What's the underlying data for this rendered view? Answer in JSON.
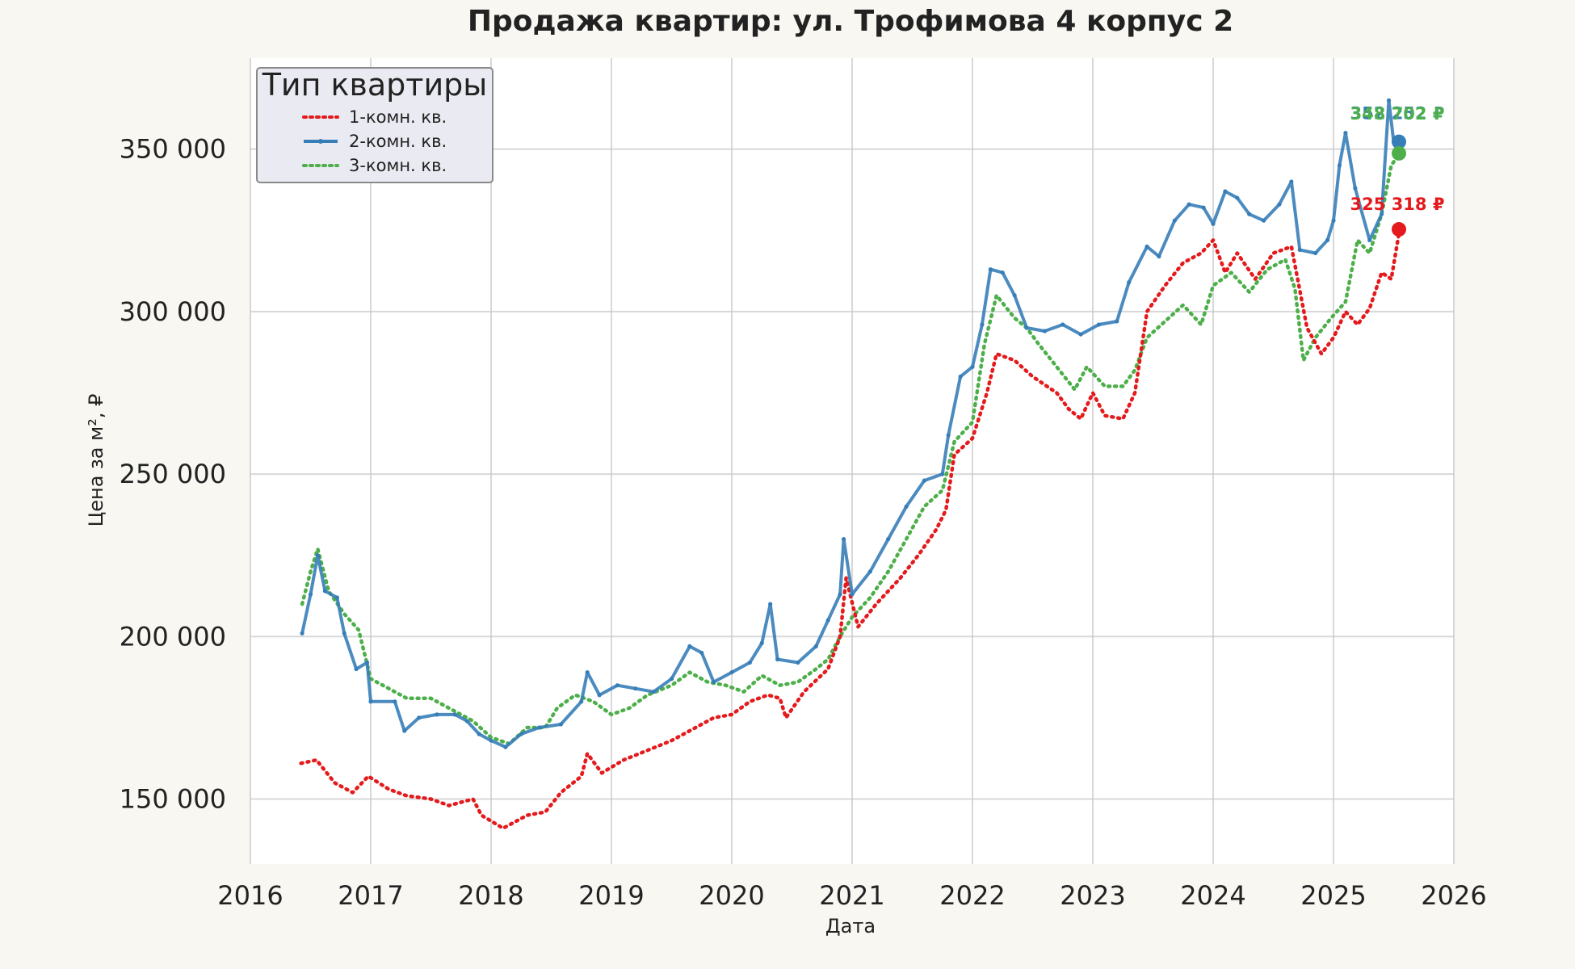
{
  "chart_data": {
    "type": "line",
    "title": "Продажа квартир: ул. Трофимова 4 корпус 2",
    "xlabel": "Дата",
    "ylabel": "Цена за м², ₽",
    "xlim": [
      2016,
      2026
    ],
    "ylim": [
      130000,
      378000
    ],
    "x_ticks": [
      2016,
      2017,
      2018,
      2019,
      2020,
      2021,
      2022,
      2023,
      2024,
      2025,
      2026
    ],
    "y_ticks": [
      150000,
      200000,
      250000,
      300000,
      350000
    ],
    "y_tick_labels": [
      "150 000",
      "200 000",
      "250 000",
      "300 000",
      "350 000"
    ],
    "grid": true,
    "legend": {
      "title": "Тип квартиры",
      "placement": "top-left"
    },
    "x_unit": "year",
    "series": [
      {
        "name": "1-комн. кв.",
        "color": "#e41a1c",
        "style": "dotted",
        "end_label": "325 318 ₽",
        "end_value": 325318,
        "points": [
          [
            2016.42,
            161000
          ],
          [
            2016.55,
            162000
          ],
          [
            2016.7,
            155000
          ],
          [
            2016.85,
            152000
          ],
          [
            2016.98,
            157000
          ],
          [
            2017.15,
            153000
          ],
          [
            2017.3,
            151000
          ],
          [
            2017.5,
            150000
          ],
          [
            2017.65,
            148000
          ],
          [
            2017.85,
            150000
          ],
          [
            2017.92,
            145000
          ],
          [
            2018.1,
            141000
          ],
          [
            2018.3,
            145000
          ],
          [
            2018.45,
            146000
          ],
          [
            2018.58,
            152000
          ],
          [
            2018.75,
            157000
          ],
          [
            2018.8,
            164000
          ],
          [
            2018.92,
            158000
          ],
          [
            2019.1,
            162000
          ],
          [
            2019.3,
            165000
          ],
          [
            2019.5,
            168000
          ],
          [
            2019.7,
            172000
          ],
          [
            2019.85,
            175000
          ],
          [
            2020.0,
            176000
          ],
          [
            2020.15,
            180000
          ],
          [
            2020.3,
            182000
          ],
          [
            2020.4,
            181000
          ],
          [
            2020.45,
            175000
          ],
          [
            2020.6,
            183000
          ],
          [
            2020.8,
            190000
          ],
          [
            2020.9,
            200000
          ],
          [
            2020.95,
            218000
          ],
          [
            2021.05,
            203000
          ],
          [
            2021.2,
            210000
          ],
          [
            2021.4,
            218000
          ],
          [
            2021.55,
            225000
          ],
          [
            2021.7,
            233000
          ],
          [
            2021.78,
            239000
          ],
          [
            2021.85,
            256000
          ],
          [
            2022.0,
            261000
          ],
          [
            2022.12,
            275000
          ],
          [
            2022.2,
            287000
          ],
          [
            2022.35,
            285000
          ],
          [
            2022.5,
            280000
          ],
          [
            2022.7,
            275000
          ],
          [
            2022.8,
            270000
          ],
          [
            2022.9,
            267000
          ],
          [
            2023.0,
            275000
          ],
          [
            2023.1,
            268000
          ],
          [
            2023.25,
            267000
          ],
          [
            2023.35,
            275000
          ],
          [
            2023.45,
            300000
          ],
          [
            2023.6,
            308000
          ],
          [
            2023.75,
            315000
          ],
          [
            2023.9,
            318000
          ],
          [
            2024.0,
            322000
          ],
          [
            2024.1,
            312000
          ],
          [
            2024.2,
            318000
          ],
          [
            2024.35,
            310000
          ],
          [
            2024.5,
            318000
          ],
          [
            2024.65,
            320000
          ],
          [
            2024.78,
            295000
          ],
          [
            2024.9,
            287000
          ],
          [
            2025.0,
            292000
          ],
          [
            2025.1,
            300000
          ],
          [
            2025.2,
            296000
          ],
          [
            2025.3,
            301000
          ],
          [
            2025.4,
            312000
          ],
          [
            2025.48,
            310000
          ],
          [
            2025.55,
            325318
          ]
        ]
      },
      {
        "name": "2-комн. кв.",
        "color": "#377eb8",
        "style": "solid",
        "end_label": "352 252 ₽",
        "end_value": 352252,
        "points": [
          [
            2016.43,
            201000
          ],
          [
            2016.5,
            213000
          ],
          [
            2016.56,
            225000
          ],
          [
            2016.62,
            214000
          ],
          [
            2016.72,
            212000
          ],
          [
            2016.78,
            201000
          ],
          [
            2016.88,
            190000
          ],
          [
            2016.97,
            192000
          ],
          [
            2017.0,
            180000
          ],
          [
            2017.2,
            180000
          ],
          [
            2017.28,
            171000
          ],
          [
            2017.4,
            175000
          ],
          [
            2017.55,
            176000
          ],
          [
            2017.7,
            176000
          ],
          [
            2017.8,
            174000
          ],
          [
            2017.9,
            170000
          ],
          [
            2018.0,
            168000
          ],
          [
            2018.12,
            166000
          ],
          [
            2018.25,
            170000
          ],
          [
            2018.4,
            172000
          ],
          [
            2018.58,
            173000
          ],
          [
            2018.75,
            180000
          ],
          [
            2018.8,
            189000
          ],
          [
            2018.9,
            182000
          ],
          [
            2019.05,
            185000
          ],
          [
            2019.2,
            184000
          ],
          [
            2019.35,
            183000
          ],
          [
            2019.5,
            187000
          ],
          [
            2019.65,
            197000
          ],
          [
            2019.75,
            195000
          ],
          [
            2019.85,
            186000
          ],
          [
            2020.0,
            189000
          ],
          [
            2020.15,
            192000
          ],
          [
            2020.25,
            198000
          ],
          [
            2020.32,
            210000
          ],
          [
            2020.38,
            193000
          ],
          [
            2020.55,
            192000
          ],
          [
            2020.7,
            197000
          ],
          [
            2020.8,
            205000
          ],
          [
            2020.9,
            213000
          ],
          [
            2020.93,
            230000
          ],
          [
            2021.0,
            213000
          ],
          [
            2021.15,
            220000
          ],
          [
            2021.3,
            230000
          ],
          [
            2021.45,
            240000
          ],
          [
            2021.6,
            248000
          ],
          [
            2021.75,
            250000
          ],
          [
            2021.8,
            262000
          ],
          [
            2021.9,
            280000
          ],
          [
            2022.0,
            283000
          ],
          [
            2022.08,
            296000
          ],
          [
            2022.15,
            313000
          ],
          [
            2022.25,
            312000
          ],
          [
            2022.35,
            305000
          ],
          [
            2022.45,
            295000
          ],
          [
            2022.6,
            294000
          ],
          [
            2022.75,
            296000
          ],
          [
            2022.9,
            293000
          ],
          [
            2023.05,
            296000
          ],
          [
            2023.2,
            297000
          ],
          [
            2023.3,
            309000
          ],
          [
            2023.45,
            320000
          ],
          [
            2023.55,
            317000
          ],
          [
            2023.68,
            328000
          ],
          [
            2023.8,
            333000
          ],
          [
            2023.92,
            332000
          ],
          [
            2024.0,
            327000
          ],
          [
            2024.1,
            337000
          ],
          [
            2024.2,
            335000
          ],
          [
            2024.3,
            330000
          ],
          [
            2024.42,
            328000
          ],
          [
            2024.55,
            333000
          ],
          [
            2024.65,
            340000
          ],
          [
            2024.72,
            319000
          ],
          [
            2024.85,
            318000
          ],
          [
            2024.95,
            322000
          ],
          [
            2025.0,
            328000
          ],
          [
            2025.05,
            345000
          ],
          [
            2025.1,
            355000
          ],
          [
            2025.18,
            338000
          ],
          [
            2025.3,
            322000
          ],
          [
            2025.4,
            330000
          ],
          [
            2025.46,
            365000
          ],
          [
            2025.5,
            352252
          ]
        ]
      },
      {
        "name": "3-комн. кв.",
        "color": "#4daf4a",
        "style": "dotted",
        "end_label": "348 702 ₽",
        "end_value": 348702,
        "points": [
          [
            2016.43,
            210000
          ],
          [
            2016.5,
            220000
          ],
          [
            2016.56,
            227000
          ],
          [
            2016.65,
            214000
          ],
          [
            2016.78,
            207000
          ],
          [
            2016.9,
            202000
          ],
          [
            2017.0,
            187000
          ],
          [
            2017.15,
            184000
          ],
          [
            2017.3,
            181000
          ],
          [
            2017.5,
            181000
          ],
          [
            2017.7,
            177000
          ],
          [
            2017.85,
            174000
          ],
          [
            2018.0,
            169000
          ],
          [
            2018.15,
            167000
          ],
          [
            2018.3,
            172000
          ],
          [
            2018.45,
            172000
          ],
          [
            2018.55,
            178000
          ],
          [
            2018.7,
            182000
          ],
          [
            2018.85,
            180000
          ],
          [
            2019.0,
            176000
          ],
          [
            2019.15,
            178000
          ],
          [
            2019.3,
            182000
          ],
          [
            2019.5,
            185000
          ],
          [
            2019.65,
            189000
          ],
          [
            2019.8,
            186000
          ],
          [
            2019.95,
            185000
          ],
          [
            2020.1,
            183000
          ],
          [
            2020.25,
            188000
          ],
          [
            2020.4,
            185000
          ],
          [
            2020.55,
            186000
          ],
          [
            2020.7,
            190000
          ],
          [
            2020.8,
            193000
          ],
          [
            2020.9,
            200000
          ],
          [
            2021.0,
            206000
          ],
          [
            2021.15,
            212000
          ],
          [
            2021.3,
            220000
          ],
          [
            2021.45,
            230000
          ],
          [
            2021.6,
            240000
          ],
          [
            2021.75,
            245000
          ],
          [
            2021.85,
            260000
          ],
          [
            2022.0,
            266000
          ],
          [
            2022.1,
            290000
          ],
          [
            2022.2,
            305000
          ],
          [
            2022.35,
            298000
          ],
          [
            2022.45,
            295000
          ],
          [
            2022.55,
            290000
          ],
          [
            2022.7,
            283000
          ],
          [
            2022.85,
            276000
          ],
          [
            2022.95,
            283000
          ],
          [
            2023.1,
            277000
          ],
          [
            2023.25,
            277000
          ],
          [
            2023.35,
            282000
          ],
          [
            2023.45,
            292000
          ],
          [
            2023.6,
            297000
          ],
          [
            2023.75,
            302000
          ],
          [
            2023.9,
            296000
          ],
          [
            2024.0,
            308000
          ],
          [
            2024.15,
            312000
          ],
          [
            2024.3,
            306000
          ],
          [
            2024.45,
            313000
          ],
          [
            2024.6,
            316000
          ],
          [
            2024.68,
            307000
          ],
          [
            2024.75,
            285000
          ],
          [
            2024.85,
            292000
          ],
          [
            2024.98,
            298000
          ],
          [
            2025.1,
            303000
          ],
          [
            2025.2,
            322000
          ],
          [
            2025.3,
            318000
          ],
          [
            2025.4,
            330000
          ],
          [
            2025.48,
            345000
          ],
          [
            2025.55,
            348702
          ]
        ]
      }
    ]
  }
}
